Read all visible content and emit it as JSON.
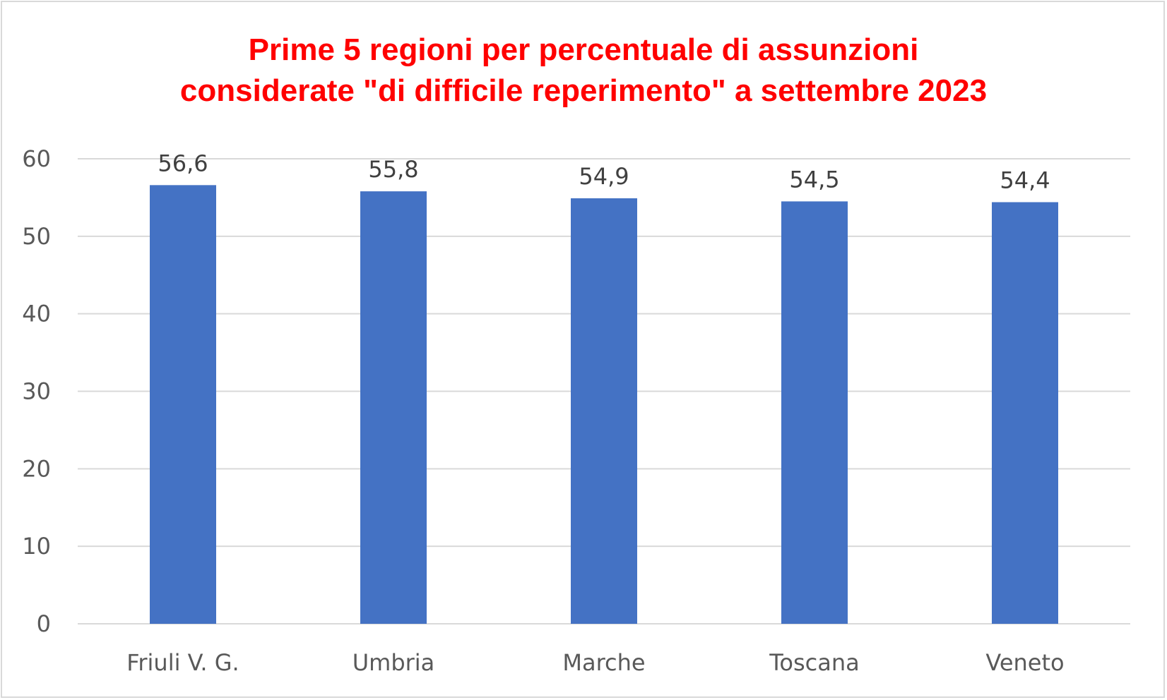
{
  "chart_data": {
    "type": "bar",
    "title_lines": [
      "Prime 5 regioni per percentuale di assunzioni",
      "considerate \"di difficile reperimento\" a settembre 2023"
    ],
    "categories": [
      "Friuli V. G.",
      "Umbria",
      "Marche",
      "Toscana",
      "Veneto"
    ],
    "values": [
      56.6,
      55.8,
      54.9,
      54.5,
      54.4
    ],
    "data_labels": [
      "56,6",
      "55,8",
      "54,9",
      "54,5",
      "54,4"
    ],
    "yticks": [
      0,
      10,
      20,
      30,
      40,
      50,
      60
    ],
    "ylim": [
      0,
      60
    ],
    "xlabel": "",
    "ylabel": "",
    "grid": true,
    "legend": "none",
    "bar_color": "#4472c4",
    "title_color": "#ff0000",
    "grid_color": "#d9d9d9"
  }
}
